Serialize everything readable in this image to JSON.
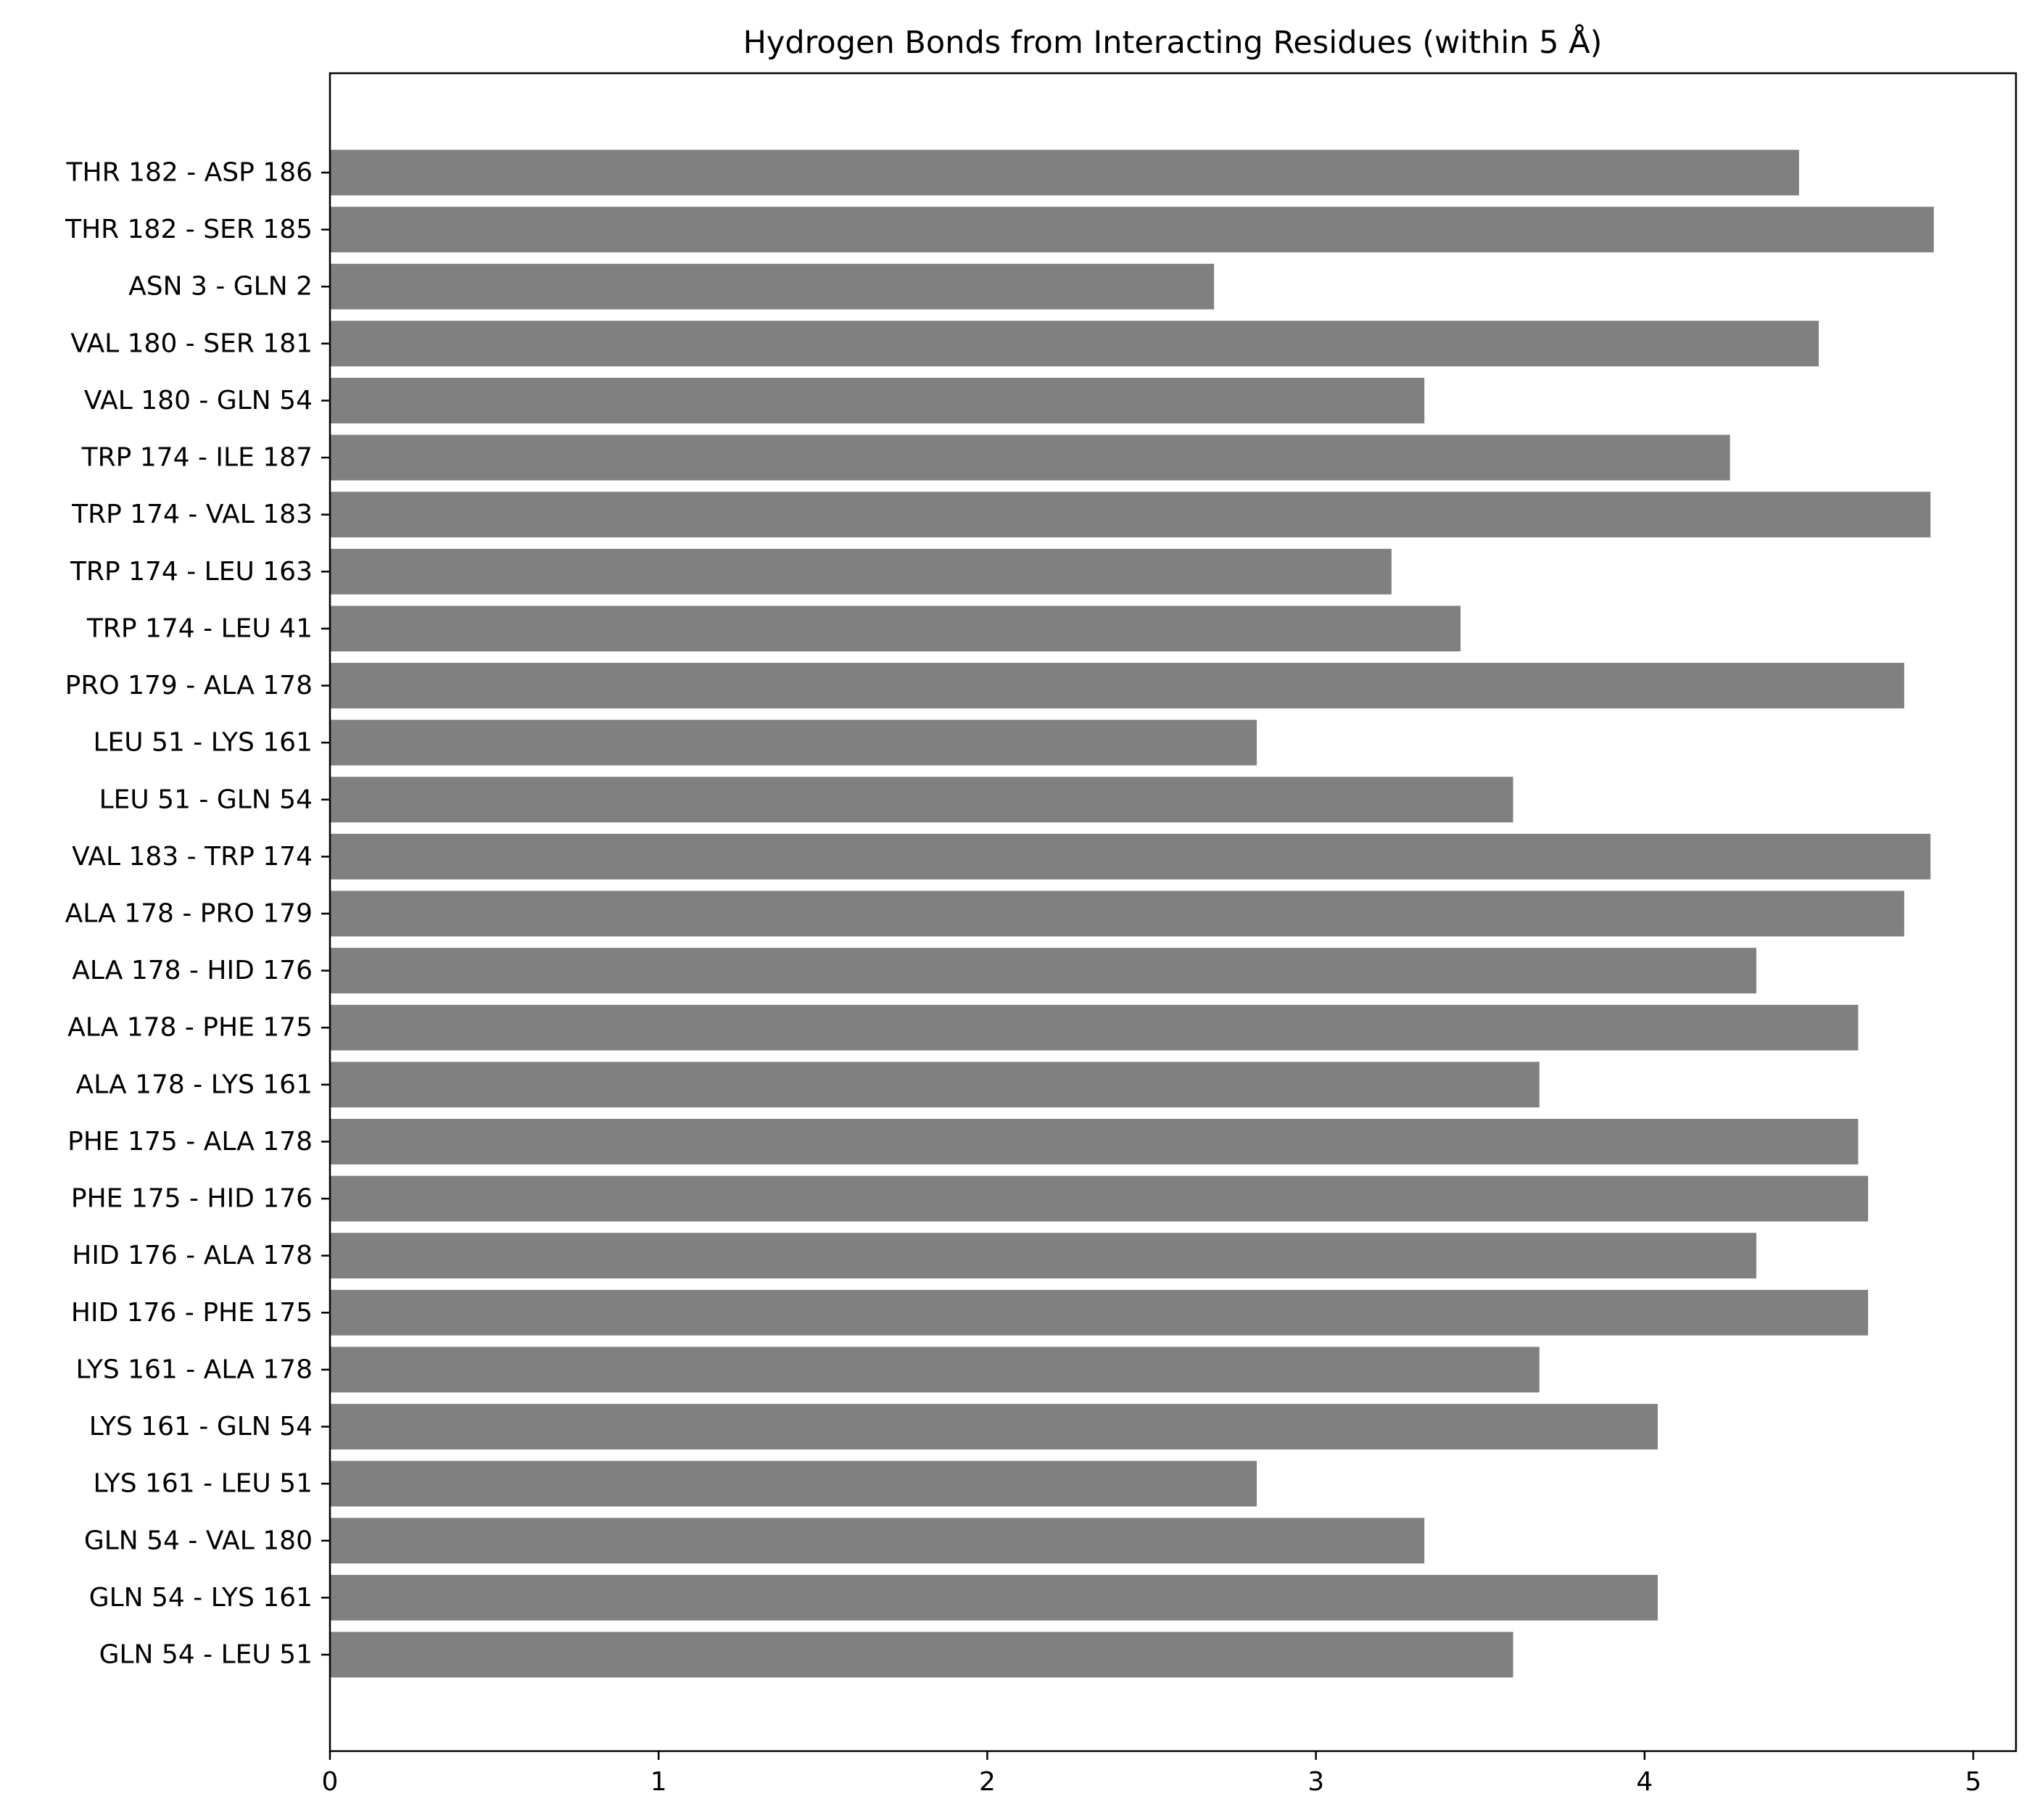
{
  "chart_data": {
    "type": "bar",
    "orientation": "horizontal",
    "title": "Hydrogen Bonds from Interacting Residues (within 5 Å)",
    "xlabel": "",
    "ylabel": "",
    "xlim": [
      0,
      5.13
    ],
    "xticks": [
      "0",
      "1",
      "2",
      "3",
      "4",
      "5"
    ],
    "grid": false,
    "bar_color": "#808080",
    "categories": [
      "THR 182 - ASP 186",
      "THR 182 - SER 185",
      "ASN 3 - GLN 2",
      "VAL 180 - SER 181",
      "VAL 180 - GLN 54",
      "TRP 174 - ILE 187",
      "TRP 174 - VAL 183",
      "TRP 174 - LEU 163",
      "TRP 174 - LEU 41",
      "PRO 179 - ALA 178",
      "LEU 51 - LYS 161",
      "LEU 51 - GLN 54",
      "VAL 183 - TRP 174",
      "ALA 178 - PRO 179",
      "ALA 178 - HID 176",
      "ALA 178 - PHE 175",
      "ALA 178 - LYS 161",
      "PHE 175 - ALA 178",
      "PHE 175 - HID 176",
      "HID 176 - ALA 178",
      "HID 176 - PHE 175",
      "LYS 161 - ALA 178",
      "LYS 161 - GLN 54",
      "LYS 161 - LEU 51",
      "GLN 54 - VAL 180",
      "GLN 54 - LYS 161",
      "GLN 54 - LEU 51"
    ],
    "values": [
      4.47,
      4.88,
      2.69,
      4.53,
      3.33,
      4.26,
      4.87,
      3.23,
      3.44,
      4.79,
      2.82,
      3.6,
      4.87,
      4.79,
      4.34,
      4.65,
      3.68,
      4.65,
      4.68,
      4.34,
      4.68,
      3.68,
      4.04,
      2.82,
      3.33,
      4.04,
      3.6
    ]
  }
}
